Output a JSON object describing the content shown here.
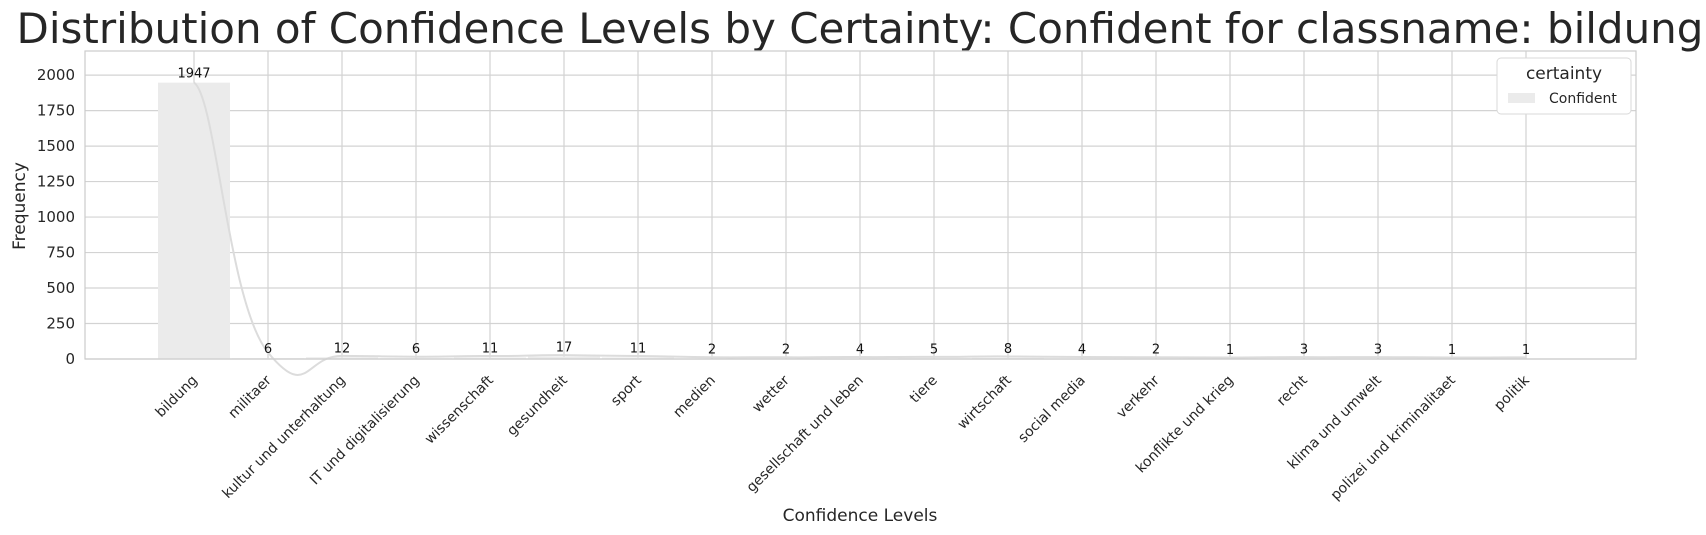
{
  "chart_data": {
    "type": "bar",
    "title": "Distribution of Confidence Levels by Certainty: Confident for classname: bildung",
    "xlabel": "Confidence Levels",
    "ylabel": "Frequency",
    "ylim": [
      0,
      2170
    ],
    "yticks": [
      0,
      250,
      500,
      750,
      1000,
      1250,
      1500,
      1750,
      2000
    ],
    "grid": true,
    "categories": [
      "bildung",
      "militaer",
      "kultur und unterhaltung",
      "IT und digitalisierung",
      "wissenschaft",
      "gesundheit",
      "sport",
      "medien",
      "wetter",
      "gesellschaft und leben",
      "tiere",
      "wirtschaft",
      "social media",
      "verkehr",
      "konflikte und krieg",
      "recht",
      "klima und umwelt",
      "polizei und kriminalitaet",
      "politik"
    ],
    "series": [
      {
        "name": "Confident",
        "values": [
          1947,
          6,
          12,
          6,
          11,
          17,
          11,
          2,
          2,
          4,
          5,
          8,
          4,
          2,
          1,
          3,
          3,
          1,
          1
        ]
      }
    ],
    "legend": {
      "title": "certainty",
      "placement": "top-right"
    },
    "colors": {
      "bar": "#ebebeb",
      "kde": "#dcdcdc",
      "grid": "#d3d3d3",
      "spine": "#cccccc",
      "text": "#262626"
    }
  }
}
